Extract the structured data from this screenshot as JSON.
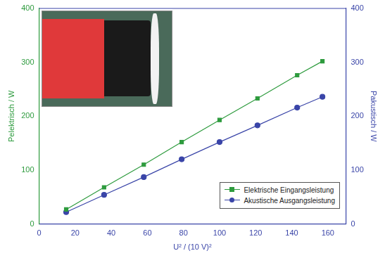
{
  "chart_data": {
    "type": "line",
    "xlabel": "U² / (10 V)²",
    "ylabel": "Pelektrisch / W",
    "y2label": "Pakustisch / W",
    "x": [
      15,
      36,
      58,
      79,
      100,
      121,
      143,
      157
    ],
    "series": [
      {
        "name": "Elektrische Eingangsleistung",
        "color": "#2e9b3e",
        "marker": "square",
        "line_style": "solid",
        "values": [
          27,
          68,
          110,
          152,
          193,
          233,
          276,
          302
        ]
      },
      {
        "name": "Akustische Ausgangsleistung",
        "color": "#3a45a8",
        "marker": "circle",
        "line_style": "solid",
        "axis": "y2",
        "values": [
          22,
          54,
          87,
          120,
          152,
          183,
          216,
          236
        ]
      }
    ],
    "xlim": [
      0,
      170
    ],
    "xticks": [
      0,
      20,
      40,
      60,
      80,
      100,
      120,
      140,
      160
    ],
    "ylim": [
      0,
      400
    ],
    "yticks": [
      0,
      100,
      200,
      300,
      400
    ],
    "y2lim": [
      0,
      400
    ],
    "y2ticks": [
      0,
      100,
      200,
      300,
      400
    ],
    "grid": false,
    "legend": "lower right"
  }
}
